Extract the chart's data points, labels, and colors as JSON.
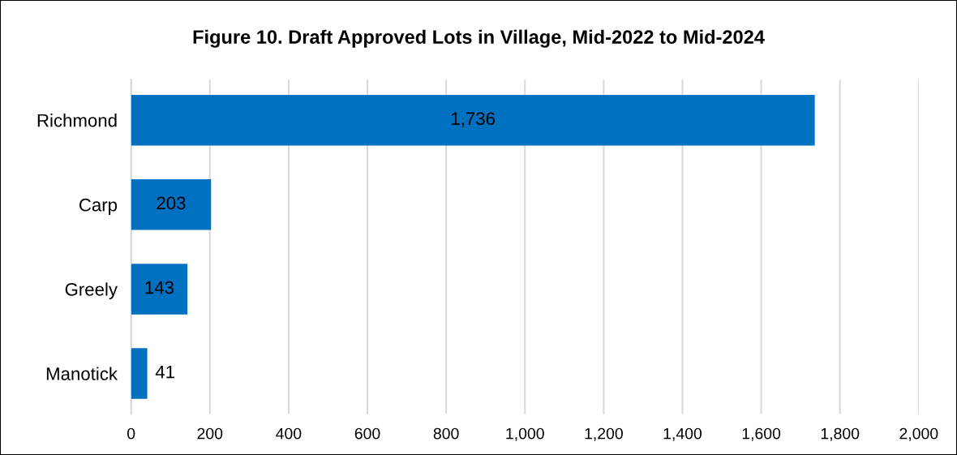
{
  "chart_data": {
    "type": "bar",
    "orientation": "horizontal",
    "title": "Figure 10. Draft Approved Lots in Village, Mid-2022 to Mid-2024",
    "categories": [
      "Richmond",
      "Carp",
      "Greely",
      "Manotick"
    ],
    "values": [
      1736,
      203,
      143,
      41
    ],
    "value_labels": [
      "1,736",
      "203",
      "143",
      "41"
    ],
    "color": "#0070c0",
    "xlim": [
      0,
      2000
    ],
    "xticks": [
      0,
      200,
      400,
      600,
      800,
      {
        "value": 1000,
        "label": "1,000"
      },
      {
        "value": 1200,
        "label": "1,200"
      },
      {
        "value": 1400,
        "label": "1,400"
      },
      {
        "value": 1600,
        "label": "1,600"
      },
      {
        "value": 1800,
        "label": "1,800"
      },
      {
        "value": 2000,
        "label": "2,000"
      }
    ],
    "grid": "x",
    "legend": false
  }
}
